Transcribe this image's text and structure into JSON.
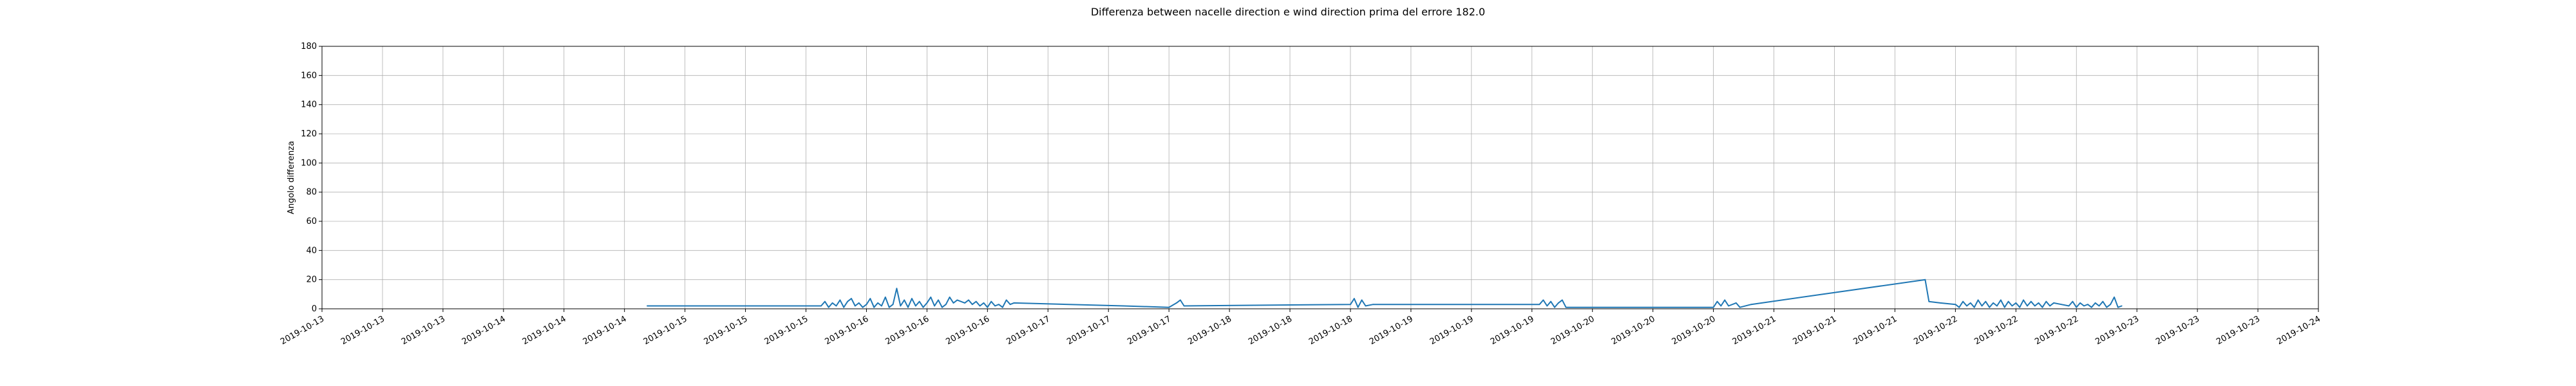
{
  "chart_data": {
    "type": "line",
    "title": "Differenza between nacelle direction e wind direction prima del errore 182.0",
    "xlabel": "",
    "ylabel": "Angolo differenza",
    "ylim": [
      0,
      180
    ],
    "yticks": [
      0,
      20,
      40,
      60,
      80,
      100,
      120,
      140,
      160,
      180
    ],
    "xlim": [
      "2019-10-13 00:00",
      "2019-10-24 00:00"
    ],
    "xtick_labels": [
      "2019-10-13",
      "2019-10-13",
      "2019-10-13",
      "2019-10-14",
      "2019-10-14",
      "2019-10-14",
      "2019-10-15",
      "2019-10-15",
      "2019-10-15",
      "2019-10-16",
      "2019-10-16",
      "2019-10-16",
      "2019-10-17",
      "2019-10-17",
      "2019-10-17",
      "2019-10-18",
      "2019-10-18",
      "2019-10-18",
      "2019-10-19",
      "2019-10-19",
      "2019-10-19",
      "2019-10-20",
      "2019-10-20",
      "2019-10-20",
      "2019-10-21",
      "2019-10-21",
      "2019-10-21",
      "2019-10-22",
      "2019-10-22",
      "2019-10-22",
      "2019-10-23",
      "2019-10-23",
      "2019-10-23",
      "2019-10-24"
    ],
    "grid": true,
    "series": [
      {
        "color": "#1f77b4",
        "points": [
          [
            "2019-10-14 19:00",
            2
          ],
          [
            "2019-10-15 08:00",
            2
          ],
          [
            "2019-10-15 18:00",
            2
          ],
          [
            "2019-10-15 18:30",
            5
          ],
          [
            "2019-10-15 19:00",
            1
          ],
          [
            "2019-10-15 19:30",
            4
          ],
          [
            "2019-10-15 20:00",
            2
          ],
          [
            "2019-10-15 20:30",
            6
          ],
          [
            "2019-10-15 21:00",
            1
          ],
          [
            "2019-10-15 21:30",
            5
          ],
          [
            "2019-10-15 22:00",
            7
          ],
          [
            "2019-10-15 22:30",
            2
          ],
          [
            "2019-10-15 23:00",
            4
          ],
          [
            "2019-10-15 23:30",
            1
          ],
          [
            "2019-10-16 00:00",
            3
          ],
          [
            "2019-10-16 00:30",
            7
          ],
          [
            "2019-10-16 01:00",
            1
          ],
          [
            "2019-10-16 01:30",
            4
          ],
          [
            "2019-10-16 02:00",
            2
          ],
          [
            "2019-10-16 02:30",
            8
          ],
          [
            "2019-10-16 03:00",
            1
          ],
          [
            "2019-10-16 03:30",
            3
          ],
          [
            "2019-10-16 04:00",
            14
          ],
          [
            "2019-10-16 04:30",
            2
          ],
          [
            "2019-10-16 05:00",
            6
          ],
          [
            "2019-10-16 05:30",
            1
          ],
          [
            "2019-10-16 06:00",
            7
          ],
          [
            "2019-10-16 06:30",
            2
          ],
          [
            "2019-10-16 07:00",
            5
          ],
          [
            "2019-10-16 07:30",
            1
          ],
          [
            "2019-10-16 08:00",
            4
          ],
          [
            "2019-10-16 08:30",
            8
          ],
          [
            "2019-10-16 09:00",
            2
          ],
          [
            "2019-10-16 09:30",
            6
          ],
          [
            "2019-10-16 10:00",
            1
          ],
          [
            "2019-10-16 10:30",
            3
          ],
          [
            "2019-10-16 11:00",
            8
          ],
          [
            "2019-10-16 11:30",
            4
          ],
          [
            "2019-10-16 12:00",
            6
          ],
          [
            "2019-10-16 13:00",
            4
          ],
          [
            "2019-10-16 13:30",
            6
          ],
          [
            "2019-10-16 14:00",
            3
          ],
          [
            "2019-10-16 14:30",
            5
          ],
          [
            "2019-10-16 15:00",
            2
          ],
          [
            "2019-10-16 15:30",
            4
          ],
          [
            "2019-10-16 16:00",
            1
          ],
          [
            "2019-10-16 16:30",
            5
          ],
          [
            "2019-10-16 17:00",
            2
          ],
          [
            "2019-10-16 17:30",
            3
          ],
          [
            "2019-10-16 18:00",
            1
          ],
          [
            "2019-10-16 18:30",
            6
          ],
          [
            "2019-10-16 19:00",
            3
          ],
          [
            "2019-10-16 19:30",
            4
          ],
          [
            "2019-10-17 10:00",
            2
          ],
          [
            "2019-10-17 16:00",
            1
          ],
          [
            "2019-10-17 17:00",
            4
          ],
          [
            "2019-10-17 17:30",
            6
          ],
          [
            "2019-10-17 18:00",
            2
          ],
          [
            "2019-10-18 16:00",
            3
          ],
          [
            "2019-10-18 16:30",
            7
          ],
          [
            "2019-10-18 17:00",
            1
          ],
          [
            "2019-10-18 17:30",
            6
          ],
          [
            "2019-10-18 18:00",
            2
          ],
          [
            "2019-10-18 19:00",
            3
          ],
          [
            "2019-10-19 17:00",
            3
          ],
          [
            "2019-10-19 17:30",
            6
          ],
          [
            "2019-10-19 18:00",
            2
          ],
          [
            "2019-10-19 18:30",
            5
          ],
          [
            "2019-10-19 19:00",
            1
          ],
          [
            "2019-10-19 19:30",
            4
          ],
          [
            "2019-10-19 20:00",
            6
          ],
          [
            "2019-10-19 20:30",
            1
          ],
          [
            "2019-10-20 16:00",
            1
          ],
          [
            "2019-10-20 16:30",
            5
          ],
          [
            "2019-10-20 17:00",
            2
          ],
          [
            "2019-10-20 17:30",
            6
          ],
          [
            "2019-10-20 18:00",
            2
          ],
          [
            "2019-10-20 19:00",
            4
          ],
          [
            "2019-10-20 19:30",
            1
          ],
          [
            "2019-10-20 21:00",
            3
          ],
          [
            "2019-10-21 20:00",
            20
          ],
          [
            "2019-10-21 20:30",
            5
          ],
          [
            "2019-10-21 22:00",
            4
          ],
          [
            "2019-10-22 00:00",
            3
          ],
          [
            "2019-10-22 00:30",
            1
          ],
          [
            "2019-10-22 01:00",
            5
          ],
          [
            "2019-10-22 01:30",
            2
          ],
          [
            "2019-10-22 02:00",
            4
          ],
          [
            "2019-10-22 02:30",
            1
          ],
          [
            "2019-10-22 03:00",
            6
          ],
          [
            "2019-10-22 03:30",
            2
          ],
          [
            "2019-10-22 04:00",
            5
          ],
          [
            "2019-10-22 04:30",
            1
          ],
          [
            "2019-10-22 05:00",
            4
          ],
          [
            "2019-10-22 05:30",
            2
          ],
          [
            "2019-10-22 06:00",
            6
          ],
          [
            "2019-10-22 06:30",
            1
          ],
          [
            "2019-10-22 07:00",
            5
          ],
          [
            "2019-10-22 07:30",
            2
          ],
          [
            "2019-10-22 08:00",
            4
          ],
          [
            "2019-10-22 08:30",
            1
          ],
          [
            "2019-10-22 09:00",
            6
          ],
          [
            "2019-10-22 09:30",
            2
          ],
          [
            "2019-10-22 10:00",
            5
          ],
          [
            "2019-10-22 10:30",
            2
          ],
          [
            "2019-10-22 11:00",
            4
          ],
          [
            "2019-10-22 11:30",
            1
          ],
          [
            "2019-10-22 12:00",
            5
          ],
          [
            "2019-10-22 12:30",
            2
          ],
          [
            "2019-10-22 13:00",
            4
          ],
          [
            "2019-10-22 14:00",
            3
          ],
          [
            "2019-10-22 15:00",
            2
          ],
          [
            "2019-10-22 15:30",
            5
          ],
          [
            "2019-10-22 16:00",
            1
          ],
          [
            "2019-10-22 16:30",
            4
          ],
          [
            "2019-10-22 17:00",
            2
          ],
          [
            "2019-10-22 17:30",
            3
          ],
          [
            "2019-10-22 18:00",
            1
          ],
          [
            "2019-10-22 18:30",
            4
          ],
          [
            "2019-10-22 19:00",
            2
          ],
          [
            "2019-10-22 19:30",
            5
          ],
          [
            "2019-10-22 20:00",
            1
          ],
          [
            "2019-10-22 20:30",
            3
          ],
          [
            "2019-10-22 21:00",
            8
          ],
          [
            "2019-10-22 21:30",
            1
          ],
          [
            "2019-10-22 22:00",
            2
          ]
        ]
      }
    ]
  }
}
